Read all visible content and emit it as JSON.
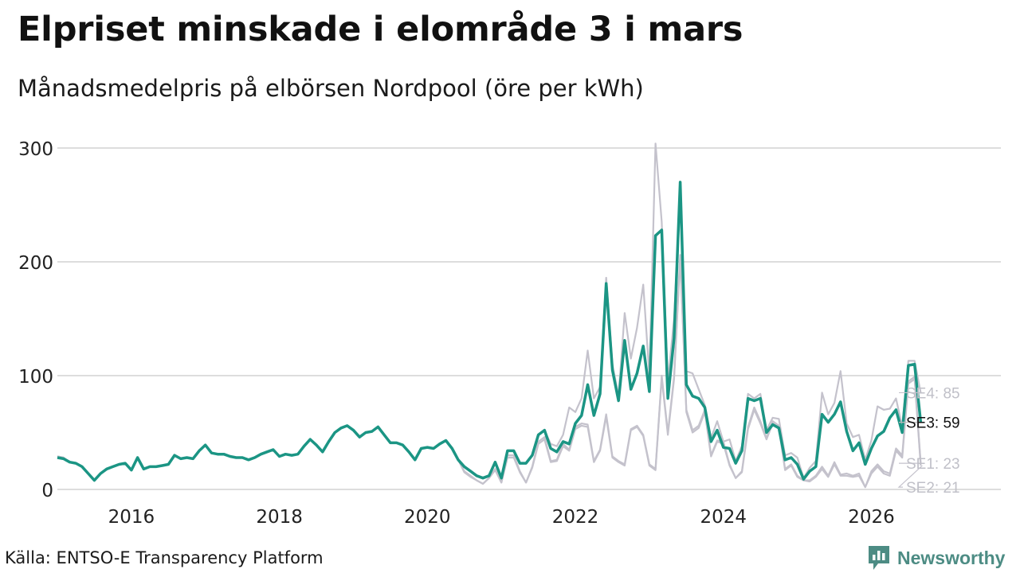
{
  "header": {
    "title": "Elpriset minskade i elområde 3 i mars",
    "subtitle": "Månadsmedelpris på elbörsen Nordpool (öre per kWh)"
  },
  "footer": {
    "source": "Källa: ENTSO-E Transparency Platform",
    "brand": "Newsworthy"
  },
  "colors": {
    "highlight": "#1b9584",
    "muted": "#c4c2cc",
    "grid": "#dddddd",
    "muted_label": "#c0c0c8"
  },
  "chart_data": {
    "type": "line",
    "title": "Elpriset minskade i elområde 3 i mars",
    "subtitle": "Månadsmedelpris på elbörsen Nordpool (öre per kWh)",
    "xlabel": "",
    "ylabel": "",
    "ylim": [
      0,
      300
    ],
    "xlim": [
      2015.0,
      2027.75
    ],
    "y_ticks": [
      0,
      100,
      200,
      300
    ],
    "x_ticks": [
      {
        "value": 2016,
        "label": "2016"
      },
      {
        "value": 2018,
        "label": "2018"
      },
      {
        "value": 2020,
        "label": "2020"
      },
      {
        "value": 2022,
        "label": "2022"
      },
      {
        "value": 2024,
        "label": "2024"
      },
      {
        "value": 2026,
        "label": "2026"
      }
    ],
    "start": "2015-01",
    "grid": true,
    "highlight_series": "SE3",
    "series": [
      {
        "name": "SE3",
        "end_label": "SE3: 59",
        "highlight": true,
        "values": [
          28,
          27,
          24,
          23,
          20,
          14,
          8,
          14,
          18,
          20,
          22,
          23,
          17,
          28,
          18,
          20,
          20,
          21,
          22,
          30,
          27,
          28,
          27,
          34,
          39,
          32,
          31,
          31,
          29,
          28,
          28,
          26,
          28,
          31,
          33,
          35,
          29,
          31,
          30,
          31,
          38,
          44,
          39,
          33,
          42,
          50,
          54,
          56,
          52,
          46,
          50,
          51,
          55,
          48,
          41,
          41,
          39,
          33,
          26,
          36,
          37,
          36,
          40,
          43,
          36,
          26,
          20,
          16,
          12,
          10,
          12,
          24,
          10,
          34,
          34,
          23,
          23,
          30,
          48,
          52,
          36,
          33,
          42,
          40,
          58,
          65,
          92,
          65,
          84,
          181,
          105,
          78,
          131,
          88,
          102,
          126,
          86,
          223,
          228,
          80,
          133,
          270,
          92,
          82,
          80,
          72,
          42,
          52,
          37,
          36,
          23,
          34,
          80,
          78,
          80,
          50,
          57,
          54,
          26,
          28,
          22,
          9,
          16,
          20,
          66,
          59,
          66,
          77,
          51,
          34,
          41,
          22,
          36,
          47,
          51,
          63,
          70,
          50,
          109,
          110,
          59
        ]
      },
      {
        "name": "SE4",
        "end_label": "SE4: 85",
        "highlight": false,
        "values": [
          29,
          28,
          24,
          23,
          20,
          14,
          8,
          14,
          18,
          20,
          22,
          23,
          17,
          28,
          18,
          20,
          20,
          21,
          22,
          30,
          27,
          28,
          27,
          34,
          39,
          32,
          31,
          31,
          29,
          28,
          28,
          26,
          28,
          31,
          33,
          35,
          29,
          31,
          30,
          31,
          38,
          44,
          39,
          33,
          42,
          50,
          54,
          56,
          52,
          46,
          50,
          51,
          55,
          48,
          41,
          41,
          39,
          33,
          26,
          36,
          37,
          36,
          40,
          43,
          36,
          26,
          20,
          16,
          12,
          10,
          12,
          24,
          10,
          34,
          34,
          23,
          23,
          30,
          48,
          52,
          40,
          38,
          48,
          72,
          68,
          80,
          122,
          80,
          90,
          186,
          110,
          82,
          155,
          115,
          142,
          180,
          100,
          304,
          235,
          95,
          150,
          260,
          104,
          102,
          88,
          74,
          45,
          60,
          42,
          44,
          25,
          38,
          84,
          80,
          84,
          52,
          63,
          62,
          30,
          32,
          28,
          10,
          19,
          25,
          85,
          66,
          76,
          104,
          58,
          46,
          48,
          26,
          43,
          73,
          70,
          71,
          80,
          55,
          113,
          113,
          85
        ]
      },
      {
        "name": "SE1",
        "end_label": "SE1: 23",
        "highlight": false,
        "values": [
          29,
          28,
          24,
          23,
          20,
          14,
          8,
          14,
          18,
          20,
          22,
          23,
          17,
          28,
          18,
          20,
          20,
          21,
          22,
          30,
          27,
          28,
          27,
          34,
          39,
          32,
          31,
          31,
          29,
          28,
          28,
          26,
          28,
          31,
          33,
          35,
          29,
          31,
          30,
          31,
          38,
          44,
          39,
          33,
          42,
          50,
          54,
          56,
          52,
          46,
          50,
          51,
          55,
          48,
          41,
          41,
          39,
          33,
          26,
          36,
          37,
          36,
          40,
          43,
          36,
          26,
          16,
          12,
          8,
          5,
          10,
          18,
          6,
          30,
          30,
          16,
          6,
          20,
          42,
          46,
          25,
          26,
          40,
          35,
          55,
          58,
          57,
          25,
          35,
          66,
          29,
          25,
          22,
          53,
          56,
          48,
          22,
          18,
          100,
          50,
          99,
          206,
          70,
          52,
          56,
          70,
          30,
          43,
          42,
          22,
          10,
          16,
          55,
          72,
          60,
          45,
          60,
          56,
          18,
          22,
          12,
          8,
          8,
          12,
          20,
          12,
          24,
          13,
          14,
          12,
          14,
          2,
          16,
          22,
          16,
          14,
          36,
          30,
          95,
          99,
          23
        ]
      },
      {
        "name": "SE2",
        "end_label": "SE2: 21",
        "highlight": false,
        "values": [
          29,
          28,
          24,
          23,
          20,
          14,
          8,
          14,
          18,
          20,
          22,
          23,
          17,
          28,
          18,
          20,
          20,
          21,
          22,
          30,
          27,
          28,
          27,
          34,
          39,
          32,
          31,
          31,
          29,
          28,
          28,
          26,
          28,
          31,
          33,
          35,
          29,
          31,
          30,
          31,
          38,
          44,
          39,
          33,
          42,
          50,
          54,
          56,
          52,
          46,
          50,
          51,
          55,
          48,
          41,
          41,
          39,
          33,
          26,
          36,
          37,
          36,
          40,
          43,
          36,
          26,
          15,
          11,
          8,
          5,
          10,
          17,
          6,
          28,
          28,
          15,
          6,
          19,
          40,
          44,
          24,
          25,
          38,
          34,
          53,
          56,
          55,
          24,
          34,
          64,
          28,
          24,
          21,
          52,
          55,
          47,
          21,
          17,
          98,
          48,
          97,
          204,
          68,
          50,
          54,
          68,
          29,
          42,
          40,
          21,
          10,
          15,
          53,
          70,
          58,
          44,
          58,
          54,
          17,
          21,
          11,
          8,
          7,
          11,
          18,
          11,
          22,
          12,
          12,
          11,
          12,
          2,
          14,
          20,
          14,
          12,
          34,
          28,
          93,
          97,
          21
        ]
      }
    ]
  }
}
